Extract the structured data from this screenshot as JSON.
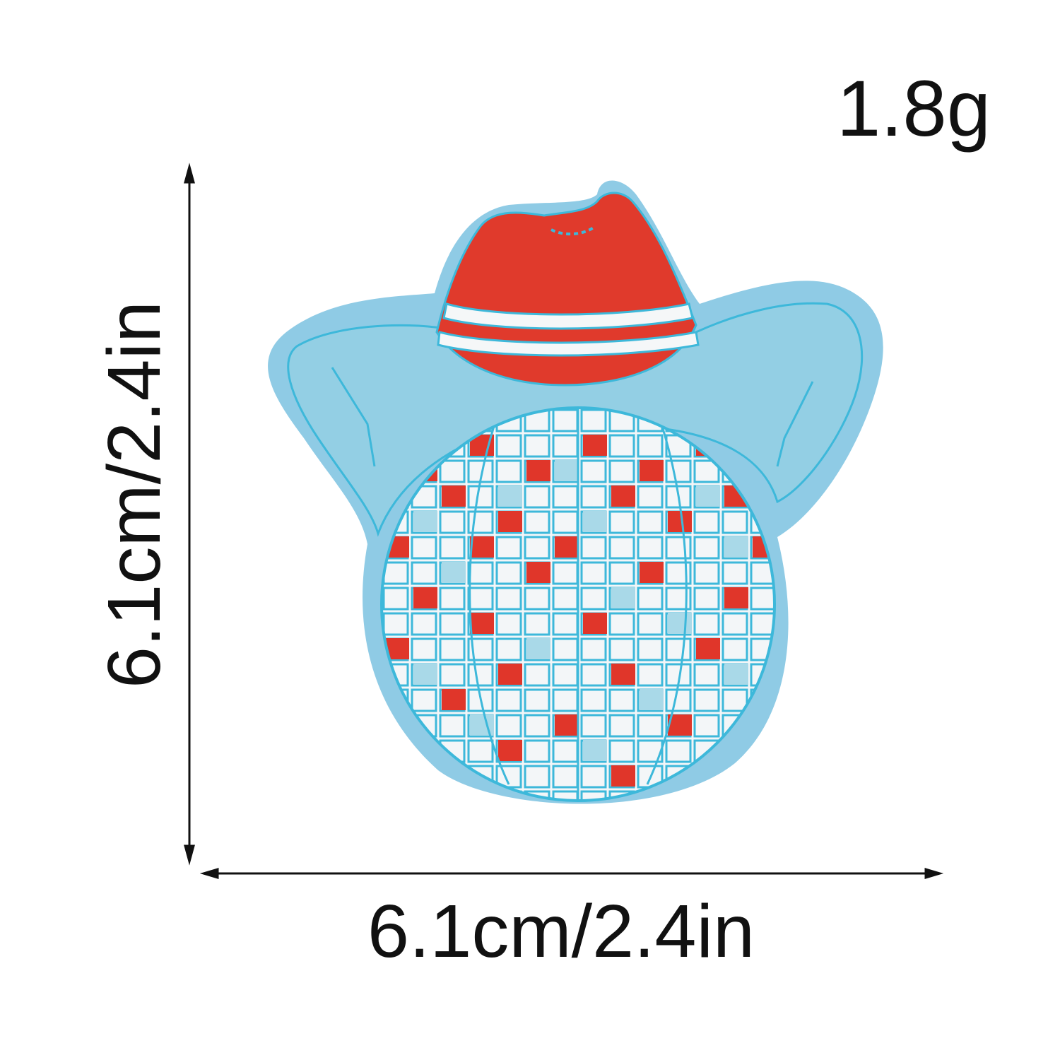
{
  "product": {
    "weight_label": "1.8g",
    "height_label": "6.1cm/2.4in",
    "width_label": "6.1cm/2.4in",
    "colors": {
      "felt_border": "#8fcbe5",
      "brim_thread": "#93cfe4",
      "hat_crown": "#e03a2c",
      "band_stripe": "#f5f7f8",
      "ball_tile_light": "#f3f6f8",
      "ball_tile_red": "#e0362a",
      "ball_tile_blue": "#a9d9e8",
      "stitch_line": "#3db8da"
    }
  }
}
